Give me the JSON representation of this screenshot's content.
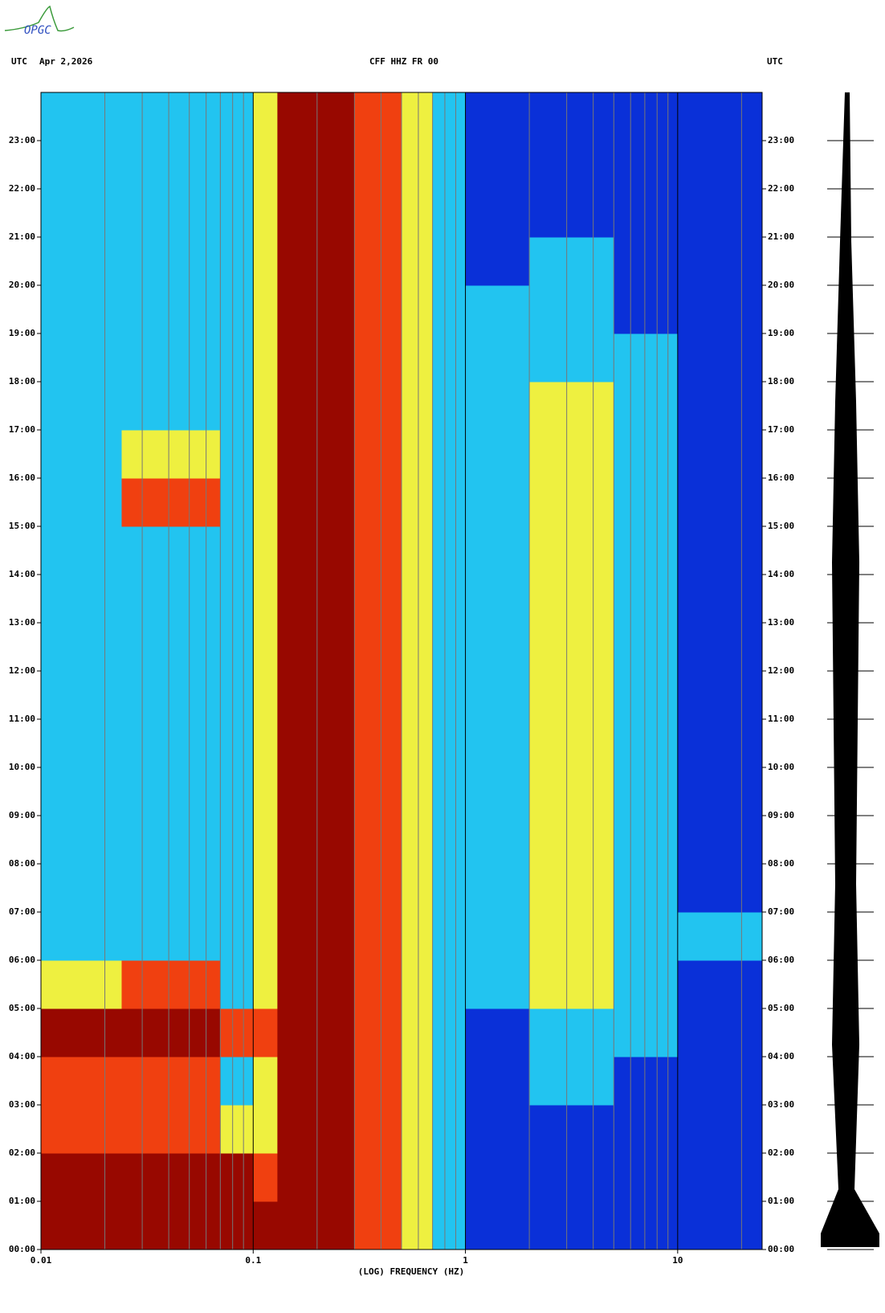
{
  "logo": "OPGC",
  "chart_data": {
    "type": "spectrogram",
    "header_left": "UTC",
    "date": "Apr 2,2026",
    "title": "CFF HHZ FR 00",
    "header_right": "UTC",
    "xlabel": "(LOG) FREQUENCY (HZ)",
    "xscale": "log",
    "xlim": [
      0.01,
      25
    ],
    "xticks": [
      0.01,
      0.1,
      1,
      10
    ],
    "xminorticks": [
      0.02,
      0.03,
      0.04,
      0.05,
      0.06,
      0.07,
      0.08,
      0.09,
      0.2,
      0.3,
      0.4,
      0.5,
      0.6,
      0.7,
      0.8,
      0.9,
      2,
      3,
      4,
      5,
      6,
      7,
      8,
      9,
      20
    ],
    "ylim": [
      0,
      24
    ],
    "yticks": [
      {
        "value": 0,
        "label": "00:00"
      },
      {
        "value": 1,
        "label": "01:00"
      },
      {
        "value": 2,
        "label": "02:00"
      },
      {
        "value": 3,
        "label": "03:00"
      },
      {
        "value": 4,
        "label": "04:00"
      },
      {
        "value": 5,
        "label": "05:00"
      },
      {
        "value": 6,
        "label": "06:00"
      },
      {
        "value": 7,
        "label": "07:00"
      },
      {
        "value": 8,
        "label": "08:00"
      },
      {
        "value": 9,
        "label": "09:00"
      },
      {
        "value": 10,
        "label": "10:00"
      },
      {
        "value": 11,
        "label": "11:00"
      },
      {
        "value": 12,
        "label": "12:00"
      },
      {
        "value": 13,
        "label": "13:00"
      },
      {
        "value": 14,
        "label": "14:00"
      },
      {
        "value": 15,
        "label": "15:00"
      },
      {
        "value": 16,
        "label": "16:00"
      },
      {
        "value": 17,
        "label": "17:00"
      },
      {
        "value": 18,
        "label": "18:00"
      },
      {
        "value": 19,
        "label": "19:00"
      },
      {
        "value": 20,
        "label": "20:00"
      },
      {
        "value": 21,
        "label": "21:00"
      },
      {
        "value": 22,
        "label": "22:00"
      },
      {
        "value": 23,
        "label": "23:00"
      }
    ],
    "colormap": [
      "#0a30d8",
      "#22c4f0",
      "#eef040",
      "#f04010",
      "#980800"
    ],
    "bins": [
      0.01,
      0.024,
      0.07,
      0.1,
      0.13,
      0.3,
      0.5,
      0.7,
      1,
      2,
      5,
      10,
      25
    ],
    "time_bins": [
      0,
      1,
      2,
      3,
      4,
      5,
      6,
      7,
      8,
      9,
      10,
      11,
      12,
      13,
      14,
      15,
      16,
      17,
      18,
      19,
      20,
      21,
      22,
      23,
      24
    ],
    "levels": [
      [
        4,
        4,
        4,
        4,
        4,
        3,
        2,
        1,
        0,
        0,
        0,
        0
      ],
      [
        4,
        4,
        4,
        3,
        4,
        3,
        2,
        1,
        0,
        0,
        0,
        0
      ],
      [
        3,
        3,
        2,
        2,
        4,
        3,
        2,
        1,
        0,
        0,
        0,
        0
      ],
      [
        3,
        3,
        1,
        2,
        4,
        3,
        2,
        1,
        0,
        1,
        0,
        0
      ],
      [
        4,
        4,
        3,
        3,
        4,
        3,
        2,
        1,
        0,
        1,
        1,
        0
      ],
      [
        2,
        3,
        1,
        2,
        4,
        3,
        2,
        1,
        1,
        2,
        1,
        0
      ],
      [
        1,
        1,
        1,
        2,
        4,
        3,
        2,
        1,
        1,
        2,
        1,
        1
      ],
      [
        1,
        1,
        1,
        2,
        4,
        3,
        2,
        1,
        1,
        2,
        1,
        0
      ],
      [
        1,
        1,
        1,
        2,
        4,
        3,
        2,
        1,
        1,
        2,
        1,
        0
      ],
      [
        1,
        1,
        1,
        2,
        4,
        3,
        2,
        1,
        1,
        2,
        1,
        0
      ],
      [
        1,
        1,
        1,
        2,
        4,
        3,
        2,
        1,
        1,
        2,
        1,
        0
      ],
      [
        1,
        1,
        1,
        2,
        4,
        3,
        2,
        1,
        1,
        2,
        1,
        0
      ],
      [
        1,
        1,
        1,
        2,
        4,
        3,
        2,
        1,
        1,
        2,
        1,
        0
      ],
      [
        1,
        1,
        1,
        2,
        4,
        3,
        2,
        1,
        1,
        2,
        1,
        0
      ],
      [
        1,
        1,
        1,
        2,
        4,
        3,
        2,
        1,
        1,
        2,
        1,
        0
      ],
      [
        1,
        3,
        1,
        2,
        4,
        3,
        2,
        1,
        1,
        2,
        1,
        0
      ],
      [
        1,
        2,
        1,
        2,
        4,
        3,
        2,
        1,
        1,
        2,
        1,
        0
      ],
      [
        1,
        1,
        1,
        2,
        4,
        3,
        2,
        1,
        1,
        2,
        1,
        0
      ],
      [
        1,
        1,
        1,
        2,
        4,
        3,
        2,
        1,
        1,
        1,
        1,
        0
      ],
      [
        1,
        1,
        1,
        2,
        4,
        3,
        2,
        1,
        1,
        1,
        0,
        0
      ],
      [
        1,
        1,
        1,
        2,
        4,
        3,
        2,
        1,
        0,
        1,
        0,
        0
      ],
      [
        1,
        1,
        1,
        2,
        4,
        3,
        2,
        1,
        0,
        0,
        0,
        0
      ],
      [
        1,
        1,
        1,
        2,
        4,
        3,
        2,
        1,
        0,
        0,
        0,
        0
      ],
      [
        1,
        1,
        1,
        2,
        4,
        3,
        2,
        1,
        0,
        0,
        0,
        0
      ]
    ]
  }
}
